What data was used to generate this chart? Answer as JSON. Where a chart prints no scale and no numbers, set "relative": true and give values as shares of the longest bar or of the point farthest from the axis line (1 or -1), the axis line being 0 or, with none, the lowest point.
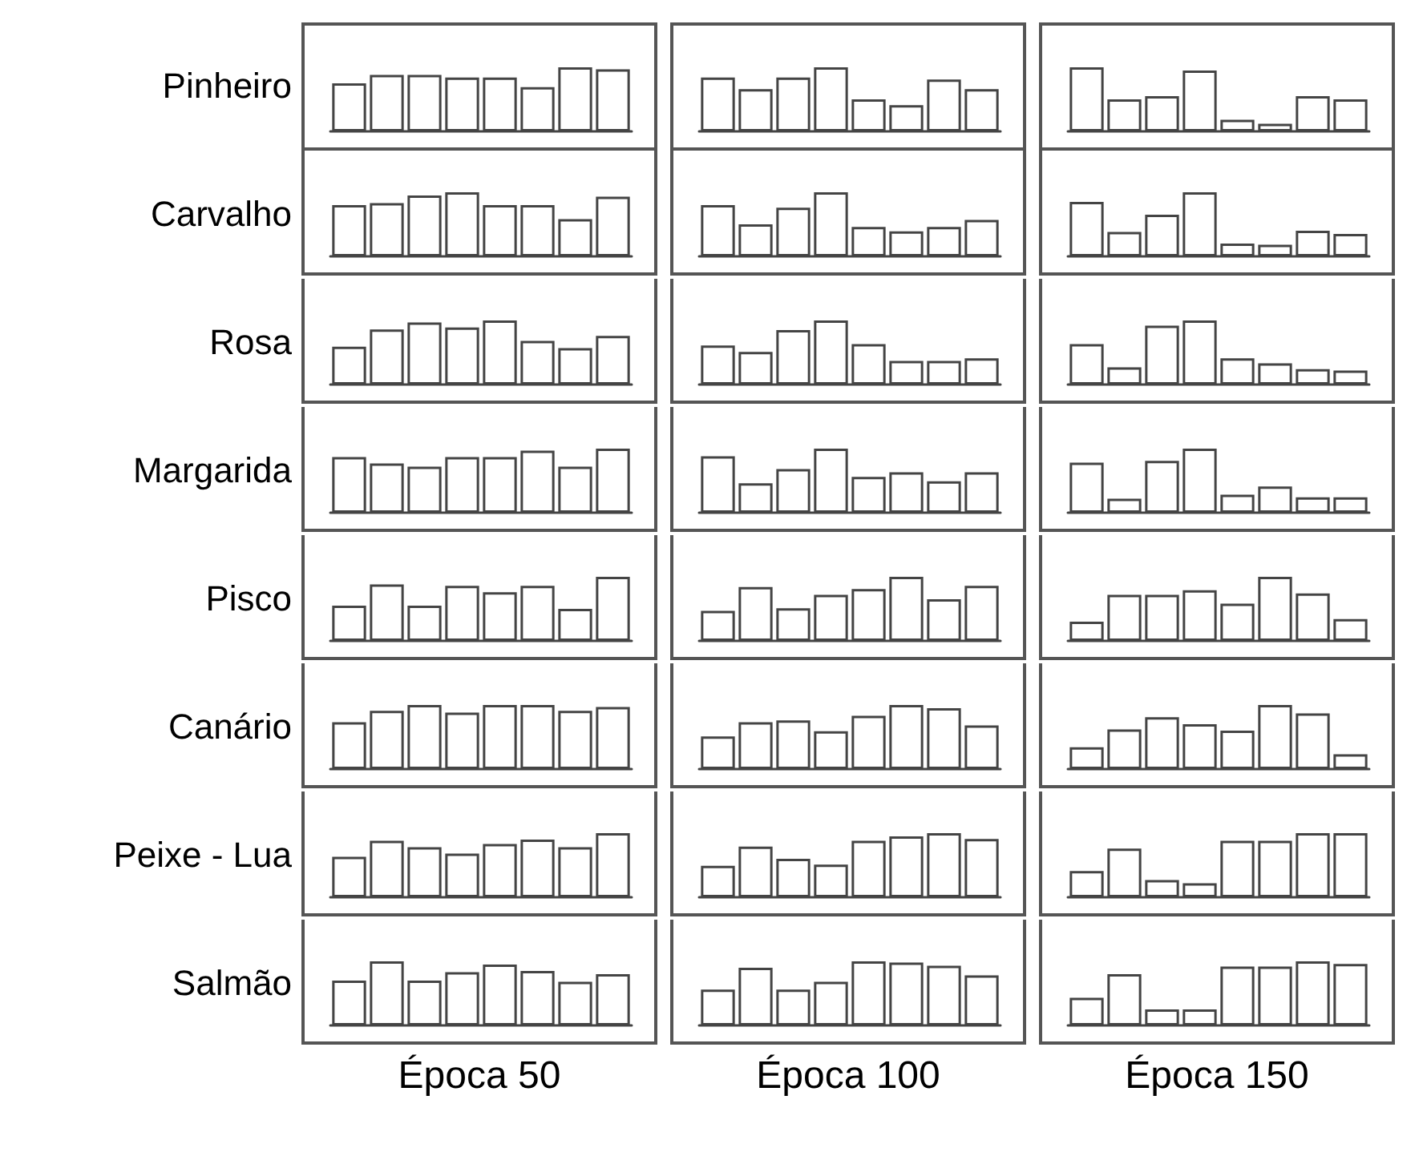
{
  "chart_data": [
    {
      "type": "bar",
      "relative": true,
      "ylabel": "Pinheiro",
      "categories": [
        null,
        null,
        null,
        null,
        null,
        null,
        null,
        null
      ],
      "color": "#ffffff",
      "values": [
        0.75,
        0.88,
        0.88,
        0.84,
        0.84,
        0.69,
        1,
        0.97
      ]
    },
    {
      "type": "bar",
      "relative": true,
      "categories": [
        null,
        null,
        null,
        null,
        null,
        null,
        null,
        null
      ],
      "color": "#ffffff",
      "values": [
        0.84,
        0.66,
        0.84,
        1,
        0.5,
        0.41,
        0.81,
        0.66
      ]
    },
    {
      "type": "bar",
      "relative": true,
      "categories": [
        null,
        null,
        null,
        null,
        null,
        null,
        null,
        null
      ],
      "color": "#ffffff",
      "values": [
        1,
        0.5,
        0.55,
        0.95,
        0.18,
        0.12,
        0.55,
        0.5
      ]
    },
    {
      "type": "bar",
      "relative": true,
      "ylabel": "Carvalho",
      "categories": [
        null,
        null,
        null,
        null,
        null,
        null,
        null,
        null
      ],
      "color": "#ffffff",
      "values": [
        0.8,
        0.83,
        0.95,
        1,
        0.8,
        0.8,
        0.58,
        0.93
      ]
    },
    {
      "type": "bar",
      "relative": true,
      "categories": [
        null,
        null,
        null,
        null,
        null,
        null,
        null,
        null
      ],
      "color": "#ffffff",
      "values": [
        0.8,
        0.5,
        0.76,
        1,
        0.46,
        0.39,
        0.46,
        0.57
      ]
    },
    {
      "type": "bar",
      "relative": true,
      "categories": [
        null,
        null,
        null,
        null,
        null,
        null,
        null,
        null
      ],
      "color": "#ffffff",
      "values": [
        0.85,
        0.38,
        0.65,
        1,
        0.2,
        0.18,
        0.4,
        0.35
      ]
    },
    {
      "type": "bar",
      "relative": true,
      "ylabel": "Rosa",
      "categories": [
        null,
        null,
        null,
        null,
        null,
        null,
        null,
        null
      ],
      "color": "#ffffff",
      "values": [
        0.59,
        0.86,
        0.97,
        0.89,
        1,
        0.68,
        0.57,
        0.76
      ]
    },
    {
      "type": "bar",
      "relative": true,
      "categories": [
        null,
        null,
        null,
        null,
        null,
        null,
        null,
        null
      ],
      "color": "#ffffff",
      "values": [
        0.61,
        0.51,
        0.85,
        1,
        0.63,
        0.37,
        0.37,
        0.41
      ]
    },
    {
      "type": "bar",
      "relative": true,
      "categories": [
        null,
        null,
        null,
        null,
        null,
        null,
        null,
        null
      ],
      "color": "#ffffff",
      "values": [
        0.63,
        0.27,
        0.92,
        1,
        0.41,
        0.33,
        0.24,
        0.22
      ]
    },
    {
      "type": "bar",
      "relative": true,
      "ylabel": "Margarida",
      "categories": [
        null,
        null,
        null,
        null,
        null,
        null,
        null,
        null
      ],
      "color": "#ffffff",
      "values": [
        0.87,
        0.77,
        0.72,
        0.87,
        0.87,
        0.97,
        0.72,
        1
      ]
    },
    {
      "type": "bar",
      "relative": true,
      "categories": [
        null,
        null,
        null,
        null,
        null,
        null,
        null,
        null
      ],
      "color": "#ffffff",
      "values": [
        0.88,
        0.46,
        0.68,
        1,
        0.56,
        0.63,
        0.49,
        0.63
      ]
    },
    {
      "type": "bar",
      "relative": true,
      "categories": [
        null,
        null,
        null,
        null,
        null,
        null,
        null,
        null
      ],
      "color": "#ffffff",
      "values": [
        0.78,
        0.22,
        0.81,
        1,
        0.28,
        0.41,
        0.24,
        0.24
      ]
    },
    {
      "type": "bar",
      "relative": true,
      "ylabel": "Pisco",
      "categories": [
        null,
        null,
        null,
        null,
        null,
        null,
        null,
        null
      ],
      "color": "#ffffff",
      "values": [
        0.55,
        0.88,
        0.55,
        0.86,
        0.76,
        0.86,
        0.5,
        1
      ]
    },
    {
      "type": "bar",
      "relative": true,
      "categories": [
        null,
        null,
        null,
        null,
        null,
        null,
        null,
        null
      ],
      "color": "#ffffff",
      "values": [
        0.47,
        0.84,
        0.51,
        0.72,
        0.81,
        1,
        0.65,
        0.86
      ]
    },
    {
      "type": "bar",
      "relative": true,
      "categories": [
        null,
        null,
        null,
        null,
        null,
        null,
        null,
        null
      ],
      "color": "#ffffff",
      "values": [
        0.3,
        0.72,
        0.72,
        0.79,
        0.58,
        1,
        0.74,
        0.34
      ]
    },
    {
      "type": "bar",
      "relative": true,
      "ylabel": "Canário",
      "categories": [
        null,
        null,
        null,
        null,
        null,
        null,
        null,
        null
      ],
      "color": "#ffffff",
      "values": [
        0.73,
        0.91,
        1,
        0.88,
        1,
        1,
        0.91,
        0.97
      ]
    },
    {
      "type": "bar",
      "relative": true,
      "categories": [
        null,
        null,
        null,
        null,
        null,
        null,
        null,
        null
      ],
      "color": "#ffffff",
      "values": [
        0.51,
        0.73,
        0.76,
        0.59,
        0.83,
        1,
        0.95,
        0.68
      ]
    },
    {
      "type": "bar",
      "relative": true,
      "categories": [
        null,
        null,
        null,
        null,
        null,
        null,
        null,
        null
      ],
      "color": "#ffffff",
      "values": [
        0.34,
        0.62,
        0.81,
        0.7,
        0.6,
        1,
        0.87,
        0.23
      ]
    },
    {
      "type": "bar",
      "relative": true,
      "ylabel": "Peixe - Lua",
      "categories": [
        null,
        null,
        null,
        null,
        null,
        null,
        null,
        null
      ],
      "color": "#ffffff",
      "values": [
        0.63,
        0.88,
        0.78,
        0.68,
        0.83,
        0.9,
        0.78,
        1
      ]
    },
    {
      "type": "bar",
      "relative": true,
      "categories": [
        null,
        null,
        null,
        null,
        null,
        null,
        null,
        null
      ],
      "color": "#ffffff",
      "values": [
        0.49,
        0.79,
        0.6,
        0.51,
        0.88,
        0.95,
        1,
        0.91
      ]
    },
    {
      "type": "bar",
      "relative": true,
      "categories": [
        null,
        null,
        null,
        null,
        null,
        null,
        null,
        null
      ],
      "color": "#ffffff",
      "values": [
        0.41,
        0.76,
        0.27,
        0.22,
        0.88,
        0.88,
        1,
        1
      ]
    },
    {
      "type": "bar",
      "relative": true,
      "ylabel": "Salmão",
      "xlabel": "Época 50",
      "categories": [
        null,
        null,
        null,
        null,
        null,
        null,
        null,
        null
      ],
      "color": "#ffffff",
      "values": [
        0.7,
        1,
        0.7,
        0.83,
        0.95,
        0.85,
        0.68,
        0.8
      ]
    },
    {
      "type": "bar",
      "relative": true,
      "xlabel": "Época 100",
      "categories": [
        null,
        null,
        null,
        null,
        null,
        null,
        null,
        null
      ],
      "color": "#ffffff",
      "values": [
        0.56,
        0.9,
        0.56,
        0.68,
        1,
        0.98,
        0.93,
        0.78
      ]
    },
    {
      "type": "bar",
      "relative": true,
      "xlabel": "Época 150",
      "categories": [
        null,
        null,
        null,
        null,
        null,
        null,
        null,
        null
      ],
      "color": "#ffffff",
      "values": [
        0.43,
        0.8,
        0.25,
        0.25,
        0.92,
        0.92,
        1,
        0.96
      ]
    }
  ]
}
